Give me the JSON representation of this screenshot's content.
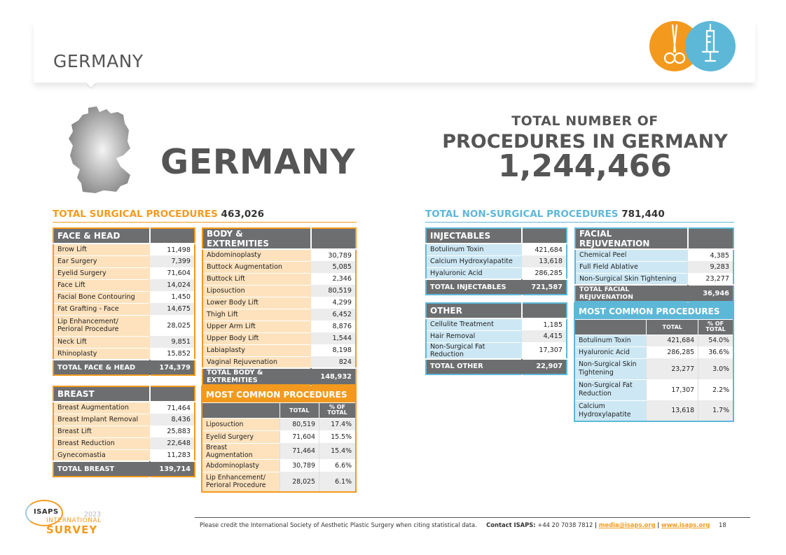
{
  "header": {
    "title": "GERMANY"
  },
  "icons": {
    "left": "scissors-icon",
    "right": "syringe-icon"
  },
  "country": {
    "name": "GERMANY"
  },
  "totals": {
    "line1": "TOTAL NUMBER OF",
    "line2": "PROCEDURES IN GERMANY",
    "value": "1,244,466"
  },
  "surgical": {
    "heading": "TOTAL SURGICAL PROCEDURES",
    "total": "463,026",
    "face_head": {
      "title": "FACE & HEAD",
      "rows": [
        {
          "name": "Brow Lift",
          "value": "11,498"
        },
        {
          "name": "Ear Surgery",
          "value": "7,399"
        },
        {
          "name": "Eyelid Surgery",
          "value": "71,604"
        },
        {
          "name": "Face Lift",
          "value": "14,024"
        },
        {
          "name": "Facial Bone Contouring",
          "value": "1,450"
        },
        {
          "name": "Fat Grafting - Face",
          "value": "14,675"
        },
        {
          "name": "Lip Enhancement/ Perioral Procedure",
          "value": "28,025"
        },
        {
          "name": "Neck Lift",
          "value": "9,851"
        },
        {
          "name": "Rhinoplasty",
          "value": "15,852"
        }
      ],
      "total_label": "TOTAL FACE & HEAD",
      "total_value": "174,379"
    },
    "body": {
      "title": "BODY & EXTREMITIES",
      "rows": [
        {
          "name": "Abdominoplasty",
          "value": "30,789"
        },
        {
          "name": "Buttock Augmentation",
          "value": "5,085"
        },
        {
          "name": "Buttock Lift",
          "value": "2,346"
        },
        {
          "name": "Liposuction",
          "value": "80,519"
        },
        {
          "name": "Lower Body Lift",
          "value": "4,299"
        },
        {
          "name": "Thigh Lift",
          "value": "6,452"
        },
        {
          "name": "Upper Arm Lift",
          "value": "8,876"
        },
        {
          "name": "Upper Body Lift",
          "value": "1,544"
        },
        {
          "name": "Labiaplasty",
          "value": "8,198"
        },
        {
          "name": "Vaginal Rejuvenation",
          "value": "824"
        }
      ],
      "total_label": "TOTAL BODY & EXTREMITIES",
      "total_value": "148,932"
    },
    "breast": {
      "title": "BREAST",
      "rows": [
        {
          "name": "Breast Augmentation",
          "value": "71,464"
        },
        {
          "name": "Breast Implant Removal",
          "value": "8,436"
        },
        {
          "name": "Breast Lift",
          "value": "25,883"
        },
        {
          "name": "Breast Reduction",
          "value": "22,648"
        },
        {
          "name": "Gynecomastia",
          "value": "11,283"
        }
      ],
      "total_label": "TOTAL BREAST",
      "total_value": "139,714"
    },
    "most_common": {
      "title": "MOST COMMON PROCEDURES",
      "col_total": "TOTAL",
      "col_pct": "% OF TOTAL",
      "rows": [
        {
          "name": "Liposuction",
          "value": "80,519",
          "pct": "17.4%"
        },
        {
          "name": "Eyelid Surgery",
          "value": "71,604",
          "pct": "15.5%"
        },
        {
          "name": "Breast Augmentation",
          "value": "71,464",
          "pct": "15.4%"
        },
        {
          "name": "Abdominoplasty",
          "value": "30,789",
          "pct": "6.6%"
        },
        {
          "name": "Lip Enhancement/ Perioral Procedure",
          "value": "28,025",
          "pct": "6.1%"
        }
      ]
    }
  },
  "nonsurgical": {
    "heading": "TOTAL NON-SURGICAL PROCEDURES",
    "total": "781,440",
    "injectables": {
      "title": "INJECTABLES",
      "rows": [
        {
          "name": "Botulinum Toxin",
          "value": "421,684"
        },
        {
          "name": "Calcium Hydroxylapatite",
          "value": "13,618"
        },
        {
          "name": "Hyaluronic Acid",
          "value": "286,285"
        }
      ],
      "total_label": "TOTAL INJECTABLES",
      "total_value": "721,587"
    },
    "facial": {
      "title": "FACIAL REJUVENATION",
      "rows": [
        {
          "name": "Chemical Peel",
          "value": "4,385"
        },
        {
          "name": "Full Field Ablative",
          "value": "9,283"
        },
        {
          "name": "Non-Surgical Skin Tightening",
          "value": "23,277"
        }
      ],
      "total_label": "TOTAL FACIAL REJUVENATION",
      "total_value": "36,946"
    },
    "other": {
      "title": "OTHER",
      "rows": [
        {
          "name": "Cellulite Treatment",
          "value": "1,185"
        },
        {
          "name": "Hair Removal",
          "value": "4,415"
        },
        {
          "name": "Non-Surgical Fat Reduction",
          "value": "17,307"
        }
      ],
      "total_label": "TOTAL OTHER",
      "total_value": "22,907"
    },
    "most_common": {
      "title": "MOST COMMON PROCEDURES",
      "col_total": "TOTAL",
      "col_pct": "% OF TOTAL",
      "rows": [
        {
          "name": "Botulinum Toxin",
          "value": "421,684",
          "pct": "54.0%"
        },
        {
          "name": "Hyaluronic Acid",
          "value": "286,285",
          "pct": "36.6%"
        },
        {
          "name": "Non-Surgical Skin Tightening",
          "value": "23,277",
          "pct": "3.0%"
        },
        {
          "name": "Non-Surgical Fat Reduction",
          "value": "17,307",
          "pct": "2.2%"
        },
        {
          "name": "Calcium Hydroxylapatite",
          "value": "13,618",
          "pct": "1.7%"
        }
      ]
    }
  },
  "footer": {
    "credit": "Please credit the International Society of Aesthetic Plastic Surgery when citing statistical data.",
    "contact_label": "Contact ISAPS:",
    "phone": "+44 20 7038 7812",
    "email": "media@isaps.org",
    "site": "www.isaps.org",
    "page": "18"
  },
  "logo": {
    "isaps": "ISAPS",
    "year": "2023",
    "international": "INTERNATIONAL",
    "survey": "SURVEY"
  },
  "colors": {
    "orange": "#f39a1e",
    "blue": "#5db8d8",
    "gray": "#6d6e70"
  }
}
